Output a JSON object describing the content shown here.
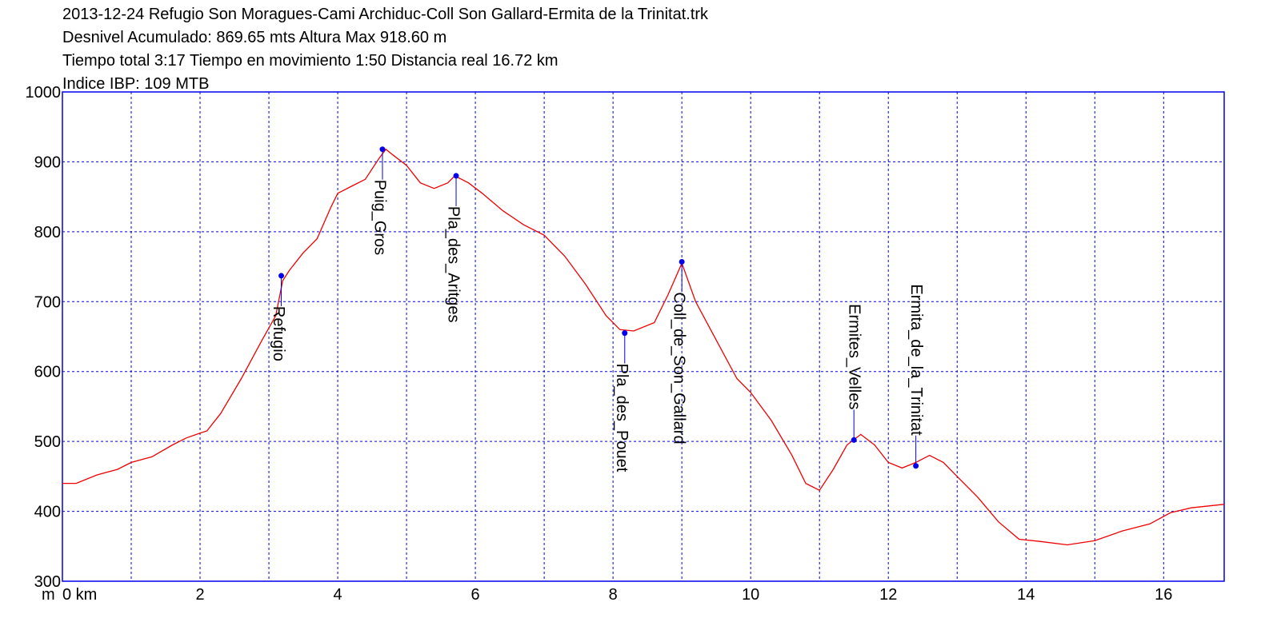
{
  "chart_data": {
    "type": "line",
    "title_lines": [
      "2013-12-24 Refugio Son Moragues-Cami Archiduc-Coll Son Gallard-Ermita de la Trinitat.trk",
      "Desnivel Acumulado: 869.65 mts  Altura Max 918.60 m",
      "Tiempo total 3:17 Tiempo en movimiento 1:50 Distancia real 16.72 km",
      "Indice IBP: 109 MTB"
    ],
    "y_label": "m",
    "xlim": [
      0,
      16.88
    ],
    "ylim": [
      300,
      1000
    ],
    "xticks": [
      {
        "value": 0,
        "label": "0 km"
      },
      2,
      4,
      6,
      8,
      10,
      12,
      14,
      16
    ],
    "x_minor_grid": [
      1,
      3,
      5,
      7,
      9,
      11,
      13,
      15
    ],
    "yticks": [
      300,
      400,
      500,
      600,
      700,
      800,
      900,
      1000
    ],
    "grid": true,
    "grid_color": "#0000ee",
    "series": [
      {
        "color": "#ee0000",
        "x": [
          0,
          0.2,
          0.5,
          0.8,
          1.0,
          1.3,
          1.6,
          1.8,
          2.0,
          2.1,
          2.3,
          2.6,
          2.9,
          3.1,
          3.2,
          3.3,
          3.5,
          3.7,
          3.9,
          4.0,
          4.2,
          4.4,
          4.6,
          4.7,
          4.8,
          5.0,
          5.2,
          5.4,
          5.6,
          5.7,
          5.9,
          6.1,
          6.4,
          6.7,
          7.0,
          7.3,
          7.6,
          7.9,
          8.1,
          8.3,
          8.6,
          8.8,
          9.0,
          9.2,
          9.5,
          9.8,
          10.0,
          10.3,
          10.6,
          10.8,
          11.0,
          11.2,
          11.4,
          11.6,
          11.8,
          12.0,
          12.2,
          12.4,
          12.6,
          12.8,
          13.0,
          13.3,
          13.6,
          13.9,
          14.2,
          14.6,
          15.0,
          15.4,
          15.8,
          16.1,
          16.4,
          16.88
        ],
        "values": [
          440,
          440,
          452,
          460,
          470,
          478,
          495,
          505,
          512,
          515,
          540,
          590,
          645,
          680,
          730,
          745,
          770,
          790,
          835,
          855,
          865,
          875,
          905,
          918,
          910,
          895,
          870,
          862,
          870,
          880,
          870,
          855,
          830,
          810,
          795,
          765,
          725,
          680,
          660,
          658,
          670,
          710,
          755,
          700,
          645,
          590,
          570,
          530,
          480,
          440,
          430,
          460,
          495,
          510,
          495,
          470,
          462,
          470,
          480,
          470,
          450,
          420,
          385,
          360,
          357,
          352,
          358,
          372,
          382,
          398,
          405,
          410
        ]
      }
    ],
    "waypoints": [
      {
        "name": "Refugio",
        "x": 3.18,
        "y": 737,
        "label_side": "below"
      },
      {
        "name": "Puig_Gros",
        "x": 4.65,
        "y": 918,
        "label_side": "below"
      },
      {
        "name": "Pla_des_Aritges",
        "x": 5.72,
        "y": 880,
        "label_side": "below"
      },
      {
        "name": "Pla_des_Pouet",
        "x": 8.17,
        "y": 655,
        "label_side": "below"
      },
      {
        "name": "Coll_de_Son_Gallard",
        "x": 9.0,
        "y": 757,
        "label_side": "below"
      },
      {
        "name": "Ermites_Velles",
        "x": 11.5,
        "y": 502,
        "label_side": "above"
      },
      {
        "name": "Ermita_de_la_Trinitat",
        "x": 12.4,
        "y": 465,
        "label_side": "above"
      }
    ],
    "point_color": "#0000ee"
  }
}
